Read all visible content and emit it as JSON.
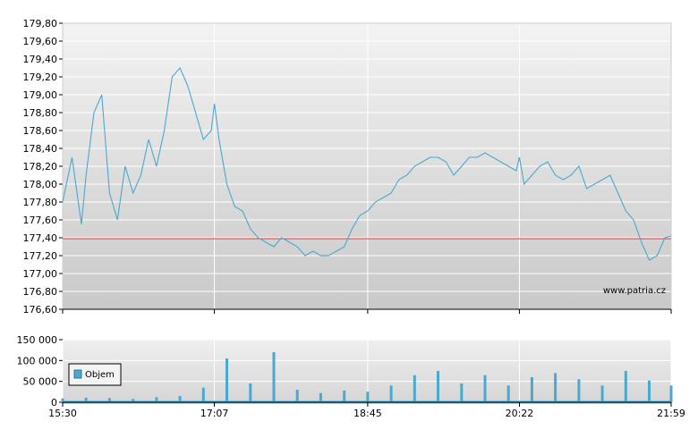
{
  "watermark": "www.patria.cz",
  "colors": {
    "price_line": "#4ba8d0",
    "reference_line": "#d9302c",
    "volume_bar": "#4ba8d0",
    "grid": "#ffffff",
    "plot_bg_top": "#f3f3f3",
    "plot_bg_bottom": "#c9c9c9"
  },
  "chart_data": [
    {
      "type": "line",
      "name": "price",
      "x_ticks": [
        "15:30",
        "17:07",
        "18:45",
        "20:22",
        "21:59"
      ],
      "y_ticks": [
        "179,80",
        "179,60",
        "179,40",
        "179,20",
        "179,00",
        "178,80",
        "178,60",
        "178,40",
        "178,20",
        "178,00",
        "177,80",
        "177,60",
        "177,40",
        "177,20",
        "177,00",
        "176,80",
        "176,60"
      ],
      "ylim": [
        176.6,
        179.8
      ],
      "reference_value": 177.39,
      "grid": true,
      "x": [
        "15:30",
        "15:36",
        "15:42",
        "15:45",
        "15:50",
        "15:55",
        "16:00",
        "16:05",
        "16:10",
        "16:15",
        "16:20",
        "16:25",
        "16:30",
        "16:35",
        "16:40",
        "16:45",
        "16:50",
        "16:55",
        "17:00",
        "17:05",
        "17:07",
        "17:10",
        "17:15",
        "17:20",
        "17:25",
        "17:30",
        "17:35",
        "17:40",
        "17:45",
        "17:50",
        "17:55",
        "18:00",
        "18:05",
        "18:10",
        "18:15",
        "18:20",
        "18:25",
        "18:30",
        "18:35",
        "18:40",
        "18:45",
        "18:50",
        "18:55",
        "19:00",
        "19:05",
        "19:10",
        "19:15",
        "19:20",
        "19:25",
        "19:30",
        "19:35",
        "19:40",
        "19:45",
        "19:50",
        "19:55",
        "20:00",
        "20:05",
        "20:10",
        "20:15",
        "20:20",
        "20:22",
        "20:25",
        "20:30",
        "20:35",
        "20:40",
        "20:45",
        "20:50",
        "20:55",
        "21:00",
        "21:05",
        "21:10",
        "21:15",
        "21:20",
        "21:25",
        "21:30",
        "21:35",
        "21:40",
        "21:45",
        "21:50",
        "21:55",
        "21:59"
      ],
      "y": [
        177.8,
        178.3,
        177.55,
        178.1,
        178.8,
        179.0,
        177.9,
        177.6,
        178.2,
        177.9,
        178.1,
        178.5,
        178.2,
        178.6,
        179.2,
        179.3,
        179.1,
        178.8,
        178.5,
        178.6,
        178.9,
        178.5,
        178.0,
        177.75,
        177.7,
        177.5,
        177.4,
        177.35,
        177.3,
        177.4,
        177.35,
        177.3,
        177.2,
        177.25,
        177.2,
        177.2,
        177.25,
        177.3,
        177.5,
        177.65,
        177.7,
        177.8,
        177.85,
        177.9,
        178.05,
        178.1,
        178.2,
        178.25,
        178.3,
        178.3,
        178.25,
        178.1,
        178.2,
        178.3,
        178.3,
        178.35,
        178.3,
        178.25,
        178.2,
        178.15,
        178.3,
        178.0,
        178.1,
        178.2,
        178.25,
        178.1,
        178.05,
        178.1,
        178.2,
        177.95,
        178.0,
        178.05,
        178.1,
        177.9,
        177.7,
        177.6,
        177.35,
        177.15,
        177.2,
        177.4,
        177.42
      ]
    },
    {
      "type": "bar",
      "name": "volume",
      "series_name": "Objem",
      "y_ticks": [
        "150 000",
        "100 000",
        "50 000",
        "0"
      ],
      "ylim": [
        0,
        150000
      ],
      "legend": "left",
      "grid": true,
      "x_ticks": [
        "15:30",
        "17:07",
        "18:45",
        "20:22",
        "21:59"
      ],
      "x": [
        "15:30",
        "15:45",
        "16:00",
        "16:15",
        "16:30",
        "16:45",
        "17:00",
        "17:15",
        "17:30",
        "17:45",
        "18:00",
        "18:15",
        "18:30",
        "18:45",
        "19:00",
        "19:15",
        "19:30",
        "19:45",
        "20:00",
        "20:15",
        "20:30",
        "20:45",
        "21:00",
        "21:15",
        "21:30",
        "21:45",
        "21:59"
      ],
      "values": [
        9000,
        11000,
        10000,
        8000,
        12000,
        15000,
        35000,
        105000,
        45000,
        120000,
        30000,
        22000,
        28000,
        25000,
        40000,
        65000,
        75000,
        45000,
        65000,
        40000,
        60000,
        70000,
        55000,
        40000,
        75000,
        52000,
        40000
      ]
    }
  ]
}
